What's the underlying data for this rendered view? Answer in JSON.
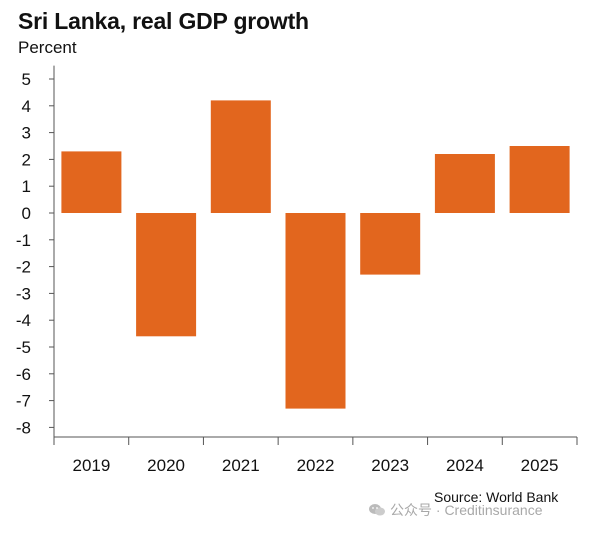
{
  "chart_data": {
    "type": "bar",
    "title": "Sri Lanka, real GDP growth",
    "unit_label": "Percent",
    "categories": [
      "2019",
      "2020",
      "2021",
      "2022",
      "2023",
      "2024",
      "2025"
    ],
    "values": [
      2.3,
      -4.6,
      4.2,
      -7.3,
      -2.3,
      2.2,
      2.5
    ],
    "ylim": [
      -8.5,
      5.5
    ],
    "yticks": [
      5,
      4,
      3,
      2,
      1,
      0,
      -1,
      -2,
      -3,
      -4,
      -5,
      -6,
      -7,
      -8
    ],
    "xlabel": "",
    "ylabel": "",
    "bar_color": "#e2661e",
    "grid": false,
    "source": "Source: World Bank"
  },
  "watermark": {
    "text": "公众号 · Creditinsurance",
    "icon": "wechat-icon"
  }
}
